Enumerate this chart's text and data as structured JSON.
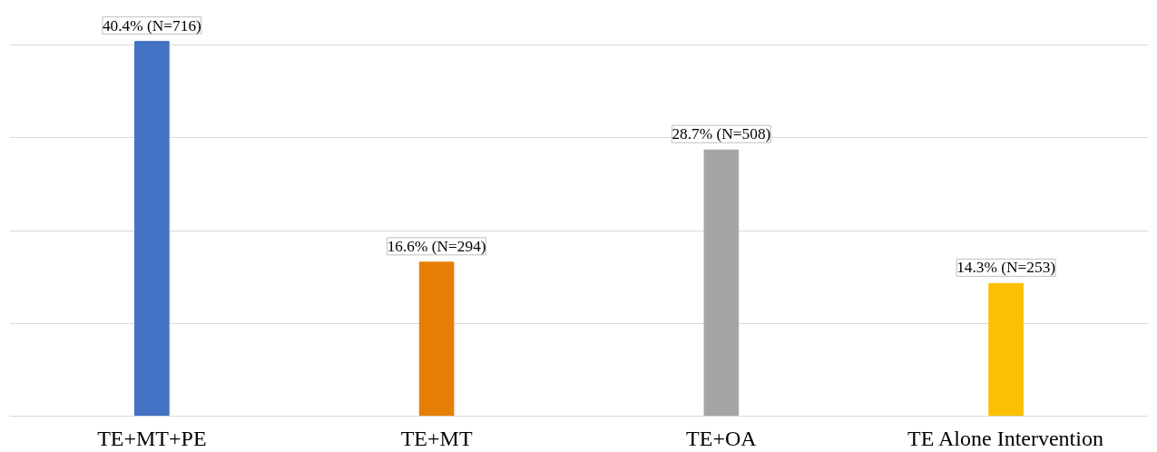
{
  "chart_data": {
    "type": "bar",
    "categories": [
      "TE+MT+PE",
      "TE+MT",
      "TE+OA",
      "TE Alone Intervention"
    ],
    "values": [
      40.4,
      16.6,
      28.7,
      14.3
    ],
    "colors": [
      "#4472c4",
      "#e67e06",
      "#a5a5a5",
      "#fbc002"
    ],
    "value_labels": [
      "40.4% (N=716)",
      "16.6% (N=294)",
      "28.7% (N=508)",
      "14.3% (N=253)"
    ],
    "tick_labels": "x",
    "grid": "y"
  }
}
